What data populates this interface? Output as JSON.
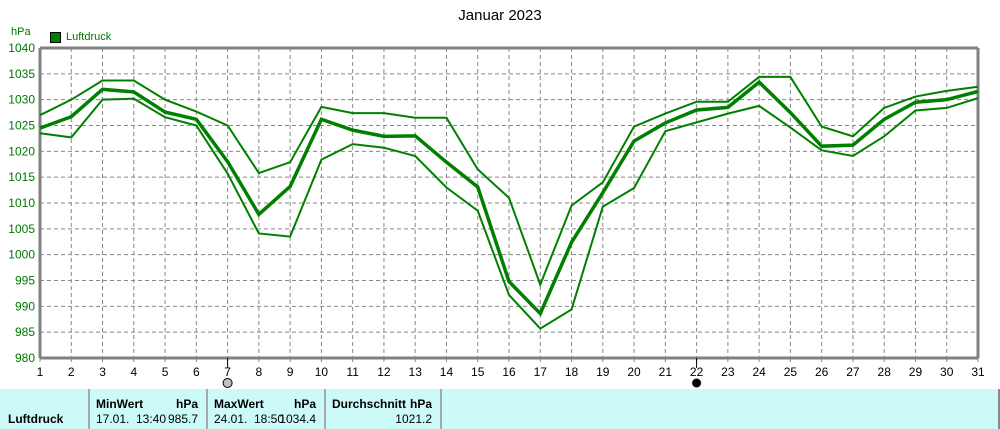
{
  "chart_data": {
    "type": "line",
    "title": "Januar 2023",
    "xlabel": "",
    "ylabel": "hPa",
    "ylim": [
      980,
      1040
    ],
    "yticks": [
      980,
      985,
      990,
      995,
      1000,
      1005,
      1010,
      1015,
      1020,
      1025,
      1030,
      1035,
      1040
    ],
    "x": [
      1,
      2,
      3,
      4,
      5,
      6,
      7,
      8,
      9,
      10,
      11,
      12,
      13,
      14,
      15,
      16,
      17,
      18,
      19,
      20,
      21,
      22,
      23,
      24,
      25,
      26,
      27,
      28,
      29,
      30,
      31
    ],
    "grid": true,
    "legend": [
      "Luftdruck"
    ],
    "legend_position": "top-left",
    "series": [
      {
        "name": "Luftdruck Max",
        "values": [
          1027.0,
          1030.0,
          1033.7,
          1033.7,
          1030.0,
          1027.7,
          1025.0,
          1015.8,
          1017.9,
          1028.6,
          1027.4,
          1027.4,
          1026.5,
          1026.5,
          1016.5,
          1011.0,
          994.2,
          1009.5,
          1014.0,
          1024.8,
          1027.3,
          1029.6,
          1029.6,
          1034.4,
          1034.4,
          1024.8,
          1022.9,
          1028.4,
          1030.6,
          1031.7,
          1032.5
        ]
      },
      {
        "name": "Luftdruck",
        "values": [
          1024.5,
          1026.7,
          1032.0,
          1031.5,
          1027.6,
          1026.2,
          1018.0,
          1007.8,
          1013.2,
          1026.2,
          1024.1,
          1022.9,
          1023.0,
          1017.9,
          1013.1,
          994.8,
          988.6,
          1002.4,
          1012.0,
          1022.0,
          1025.5,
          1028.0,
          1028.5,
          1033.4,
          1027.5,
          1021.0,
          1021.2,
          1026.2,
          1029.5,
          1030.0,
          1031.6
        ]
      },
      {
        "name": "Luftdruck Min",
        "values": [
          1023.5,
          1022.7,
          1030.0,
          1030.2,
          1026.6,
          1025.0,
          1015.7,
          1004.1,
          1003.5,
          1018.4,
          1021.4,
          1020.7,
          1019.1,
          1013.0,
          1008.5,
          992.2,
          985.7,
          989.4,
          1009.3,
          1012.9,
          1023.9,
          1025.6,
          1027.3,
          1028.8,
          1024.6,
          1020.2,
          1019.1,
          1022.9,
          1027.9,
          1028.4,
          1030.3
        ]
      }
    ],
    "annotations": [
      {
        "day": 7,
        "marker": "moon-first-quarter-or-full",
        "style": "grey-circle"
      },
      {
        "day": 22,
        "marker": "new-moon",
        "style": "black-circle"
      }
    ],
    "line_color": "#008000"
  },
  "header": {
    "title": "Januar 2023",
    "unit": "hPa",
    "legend_label": "Luftdruck"
  },
  "stats": {
    "row_label": "Luftdruck",
    "min": {
      "header": "MinWert",
      "unit": "hPa",
      "date": "17.01.",
      "time": "13:40",
      "value": "985.7"
    },
    "max": {
      "header": "MaxWert",
      "unit": "hPa",
      "date": "24.01.",
      "time": "18:50",
      "value": "1034.4"
    },
    "avg": {
      "header": "Durchschnitt",
      "unit": "hPa",
      "value": "1021.2"
    }
  }
}
